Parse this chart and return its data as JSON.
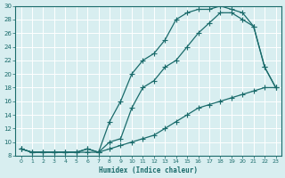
{
  "xlabel": "Humidex (Indice chaleur)",
  "bg_color": "#d8eef0",
  "grid_color": "#ffffff",
  "line_color": "#1a6b6b",
  "xlim": [
    -0.5,
    23.5
  ],
  "ylim": [
    8,
    30
  ],
  "xticks": [
    0,
    1,
    2,
    3,
    4,
    5,
    6,
    7,
    8,
    9,
    10,
    11,
    12,
    13,
    14,
    15,
    16,
    17,
    18,
    19,
    20,
    21,
    22,
    23
  ],
  "yticks": [
    8,
    10,
    12,
    14,
    16,
    18,
    20,
    22,
    24,
    26,
    28,
    30
  ],
  "curve1_x": [
    0,
    1,
    2,
    3,
    4,
    5,
    6,
    7,
    8,
    9,
    10,
    11,
    12,
    13,
    14,
    15,
    16,
    17,
    18,
    19,
    20,
    21,
    22,
    23
  ],
  "curve1_y": [
    9,
    8.5,
    8.5,
    8.5,
    8.5,
    8.5,
    8.5,
    8.5,
    9,
    9.5,
    10,
    10.5,
    11,
    12,
    13,
    14,
    15,
    15.5,
    16,
    16.5,
    17,
    17.5,
    18,
    18
  ],
  "curve2_x": [
    0,
    1,
    2,
    3,
    4,
    5,
    6,
    7,
    8,
    9,
    10,
    11,
    12,
    13,
    14,
    15,
    16,
    17,
    18,
    19,
    20,
    21,
    22,
    23
  ],
  "curve2_y": [
    9,
    8.5,
    8.5,
    8.5,
    8.5,
    8.5,
    9,
    8.5,
    10,
    10.5,
    15,
    18,
    19,
    21,
    22,
    24,
    26,
    27.5,
    29,
    29,
    28,
    27,
    21,
    18
  ],
  "curve3_x": [
    0,
    1,
    2,
    3,
    4,
    5,
    6,
    7,
    8,
    9,
    10,
    11,
    12,
    13,
    14,
    15,
    16,
    17,
    18,
    19,
    20,
    21,
    22,
    23
  ],
  "curve3_y": [
    9,
    8.5,
    8.5,
    8.5,
    8.5,
    8.5,
    9,
    8.5,
    13,
    16,
    20,
    22,
    23,
    25,
    28,
    29,
    29.5,
    29.5,
    30,
    29.5,
    29,
    27,
    21,
    18
  ]
}
